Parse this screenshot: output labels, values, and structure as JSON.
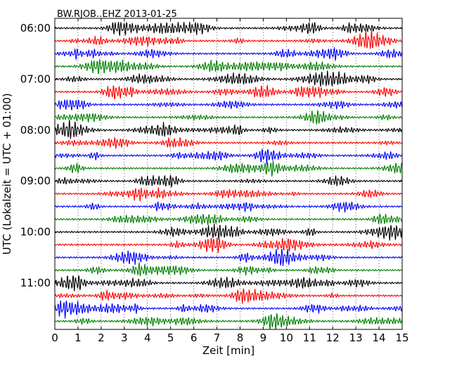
{
  "chart_data": {
    "type": "line",
    "title": "BW.RJOB..EHZ 2013-01-25",
    "xlabel": "Zeit  [min]",
    "ylabel": "UTC (Lokalzeit = UTC + 01:00)",
    "xlim": [
      0,
      15
    ],
    "x_ticks": [
      "0",
      "1",
      "2",
      "3",
      "4",
      "5",
      "6",
      "7",
      "8",
      "9",
      "10",
      "11",
      "12",
      "13",
      "14",
      "15"
    ],
    "y_tick_labels": [
      "06:00",
      "07:00",
      "08:00",
      "09:00",
      "10:00",
      "11:00"
    ],
    "grid": "vertical-dotted",
    "trace_minutes": 15,
    "start_time": "06:00",
    "trace_colors": [
      "#000000",
      "#ff0000",
      "#0000ff",
      "#007f00"
    ],
    "n_traces": 24
  }
}
